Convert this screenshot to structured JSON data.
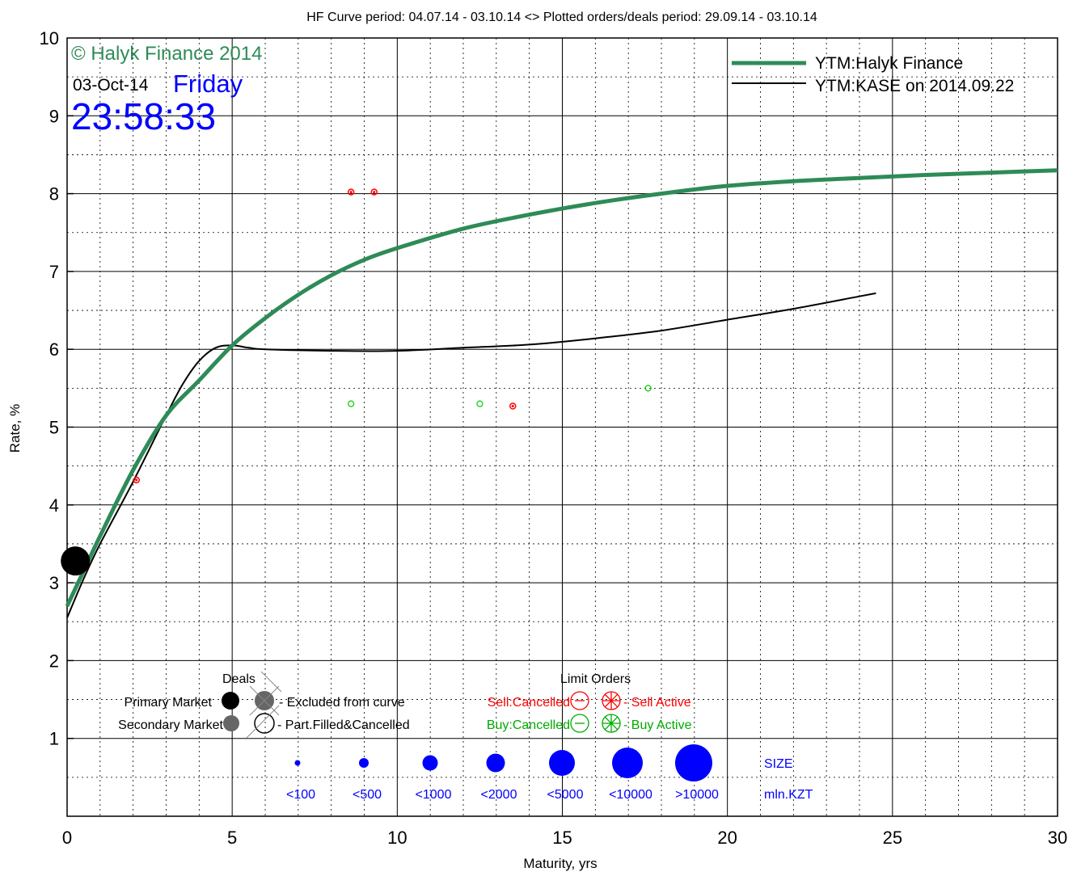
{
  "page_title": "HF Curve period: 04.07.14 - 03.10.14  <>  Plotted orders/deals period: 29.09.14 - 03.10.14",
  "watermark": "© Halyk Finance 2014",
  "date_text": "03-Oct-14",
  "weekday_text": "Friday",
  "time_text": "23:58:33",
  "legend": {
    "hf": "YTM:Halyk Finance",
    "kase": "YTM:KASE on 2014.09.22"
  },
  "key": {
    "deals_title": "Deals",
    "primary_market": "Primary Market",
    "secondary_market": "Secondary Market",
    "excluded": "- Excluded from curve",
    "part_filled": "- Part.Filled&Cancelled",
    "limit_orders_title": "Limit Orders",
    "sell_cancelled": "Sell:Cancelled",
    "sell_active": "- Sell Active",
    "buy_cancelled": "Buy:Cancelled",
    "buy_active": "- Buy Active",
    "size_title": "SIZE",
    "size_unit": "mln.KZT",
    "sizes": [
      "<100",
      "<500",
      "<1000",
      "<2000",
      "<5000",
      "<10000",
      ">10000"
    ]
  },
  "colors": {
    "hf_curve": "#2e8b57",
    "kase_curve": "#000000",
    "sell": "#ff0000",
    "buy": "#00aa00",
    "size": "#0000ff",
    "grid": "#000000"
  },
  "chart_data": {
    "type": "line",
    "xlabel": "Maturity, yrs",
    "ylabel": "Rate, %",
    "xlim": [
      0,
      30
    ],
    "ylim": [
      0,
      10
    ],
    "x_ticks": [
      "0",
      "5",
      "10",
      "15",
      "20",
      "25",
      "30"
    ],
    "y_ticks": [
      "1",
      "2",
      "3",
      "4",
      "5",
      "6",
      "7",
      "8",
      "9",
      "10"
    ],
    "grid": true,
    "legend_position": "top-right",
    "series": [
      {
        "name": "YTM:Halyk Finance",
        "x": [
          0,
          0.5,
          1,
          2,
          3,
          4,
          5,
          6,
          7,
          8,
          9,
          10,
          12,
          14,
          16,
          18,
          20,
          22,
          24,
          26,
          28,
          30
        ],
        "values": [
          2.7,
          3.15,
          3.6,
          4.45,
          5.15,
          5.6,
          6.05,
          6.4,
          6.7,
          6.95,
          7.15,
          7.3,
          7.55,
          7.73,
          7.88,
          8.0,
          8.1,
          8.16,
          8.2,
          8.24,
          8.27,
          8.3
        ]
      },
      {
        "name": "YTM:KASE on 2014.09.22",
        "x": [
          0,
          0.5,
          1,
          2,
          3,
          3.5,
          4,
          4.5,
          5,
          5.5,
          6,
          8,
          10,
          12,
          14,
          16,
          18,
          20,
          22,
          24,
          24.5
        ],
        "values": [
          2.55,
          3.05,
          3.5,
          4.3,
          5.15,
          5.55,
          5.85,
          6.02,
          6.05,
          6.02,
          6.0,
          5.98,
          5.98,
          6.02,
          6.06,
          6.14,
          6.24,
          6.38,
          6.52,
          6.68,
          6.72
        ]
      }
    ],
    "deals": [
      {
        "x": 0.25,
        "y": 3.28,
        "type": "primary",
        "size": ">10000"
      }
    ],
    "orders": [
      {
        "x": 8.6,
        "y": 8.02,
        "side": "sell",
        "status": "active"
      },
      {
        "x": 9.3,
        "y": 8.02,
        "side": "sell",
        "status": "active"
      },
      {
        "x": 2.1,
        "y": 4.32,
        "side": "sell",
        "status": "active"
      },
      {
        "x": 13.5,
        "y": 5.27,
        "side": "sell",
        "status": "active"
      },
      {
        "x": 8.6,
        "y": 5.3,
        "side": "buy",
        "status": "cancelled"
      },
      {
        "x": 12.5,
        "y": 5.3,
        "side": "buy",
        "status": "cancelled"
      },
      {
        "x": 17.6,
        "y": 5.5,
        "side": "buy",
        "status": "cancelled"
      }
    ]
  }
}
